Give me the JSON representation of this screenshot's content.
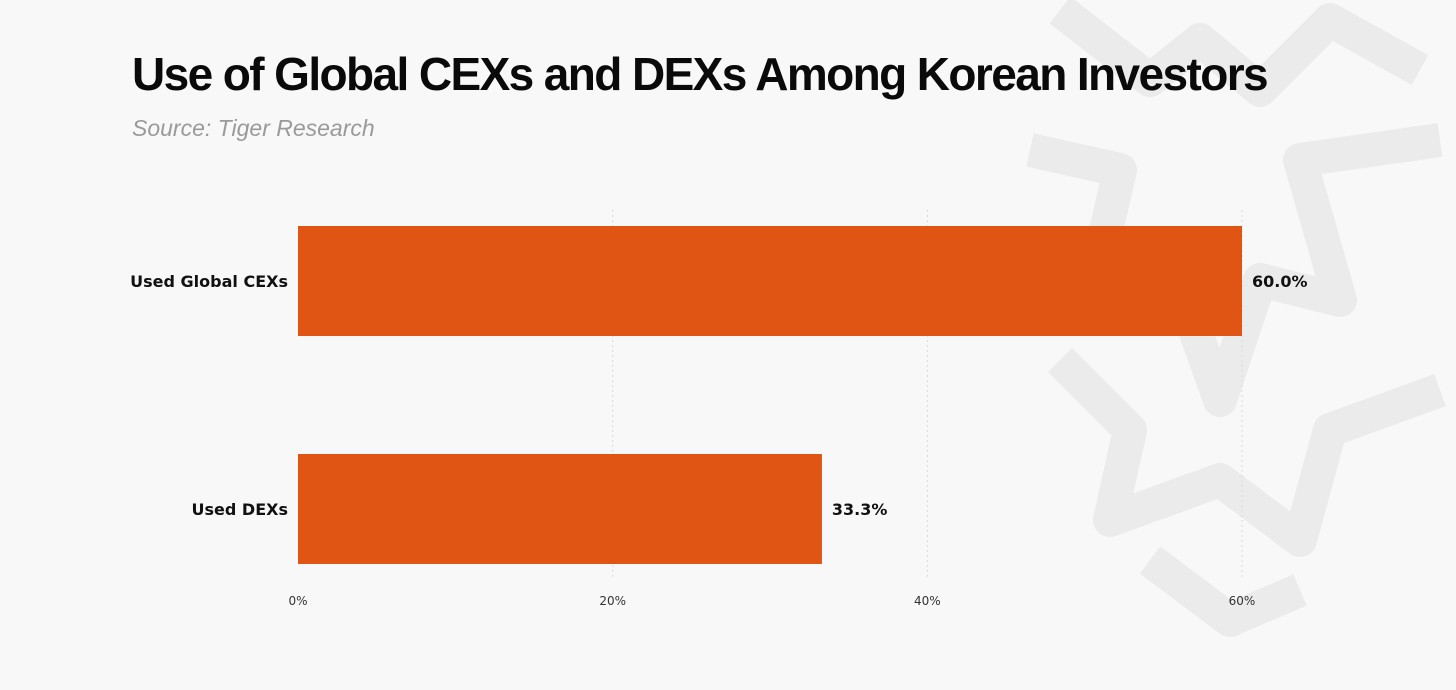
{
  "header": {
    "title": "Use of Global CEXs and DEXs Among Korean Investors",
    "source": "Source: Tiger Research"
  },
  "chart_data": {
    "type": "bar",
    "orientation": "horizontal",
    "title": "Use of Global CEXs and DEXs Among Korean Investors",
    "subtitle": "Source: Tiger Research",
    "xlabel": "",
    "ylabel": "",
    "categories": [
      "Used Global CEXs",
      "Used DEXs"
    ],
    "values": [
      60.0,
      33.3
    ],
    "value_labels": [
      "60.0%",
      "33.3%"
    ],
    "xlim": [
      0,
      60
    ],
    "xticks": [
      0,
      20,
      40,
      60
    ],
    "xtick_labels": [
      "0%",
      "20%",
      "40%",
      "60%"
    ],
    "grid": "vertical-dotted",
    "legend": "none",
    "colors": {
      "bar": "#e05414",
      "title": "#0a0a0a",
      "subtitle": "#9a9a9a",
      "gridline": "#d8d8d8",
      "background": "#f8f8f8",
      "watermark": "#eeeeee"
    },
    "watermark_icon": "tiger-logo-icon"
  }
}
